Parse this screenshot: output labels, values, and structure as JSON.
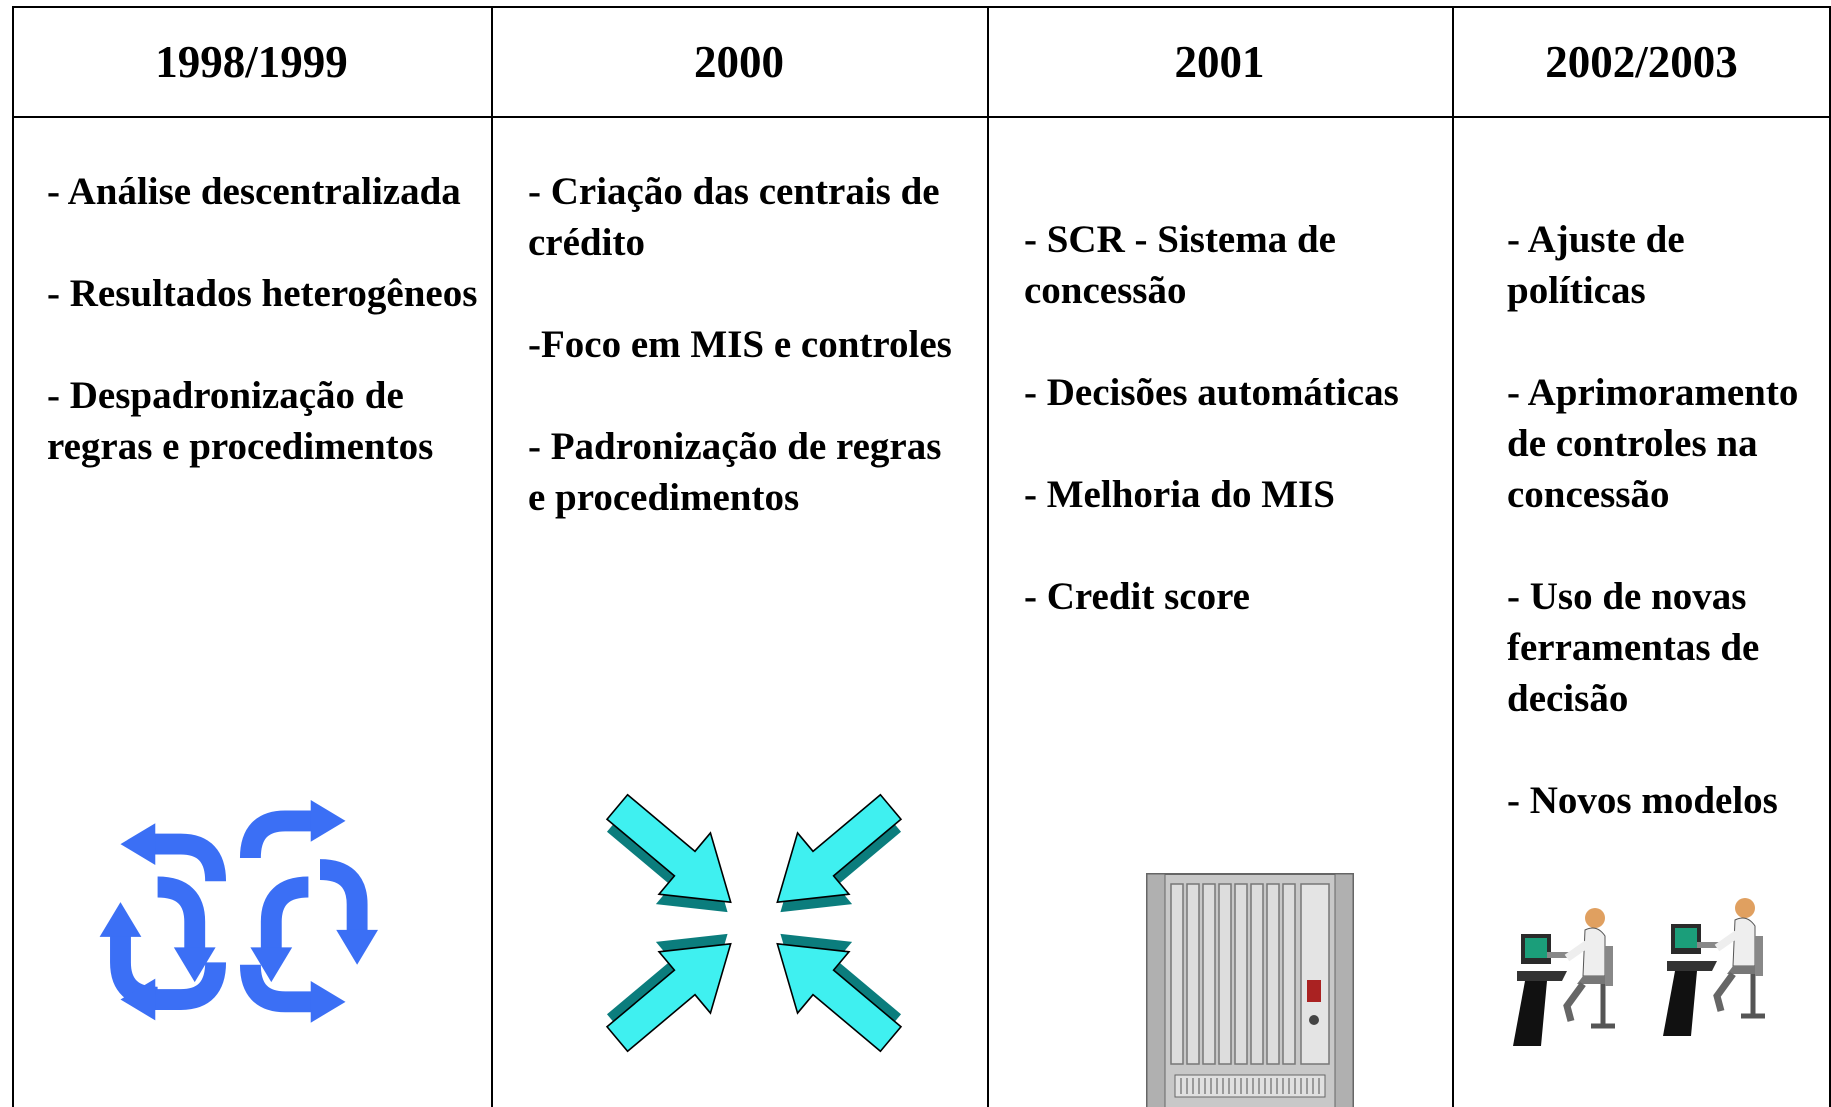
{
  "table": {
    "headers": [
      "1998/1999",
      "2000",
      "2001",
      "2002/2003"
    ],
    "columns": [
      {
        "items": [
          "- Análise descentralizada",
          "- Resultados heterogêneos",
          "- Despadronização de regras e procedimentos"
        ]
      },
      {
        "items": [
          "- Criação das centrais de crédito",
          "-Foco em MIS e controles",
          "- Padronização de regras e procedimentos"
        ]
      },
      {
        "items": [
          "- SCR - Sistema de concessão",
          "- Decisões automáticas",
          "- Melhoria do MIS",
          "-  Credit score"
        ]
      },
      {
        "items": [
          "- Ajuste de políticas",
          "- Aprimoramento de controles na concessão",
          "- Uso de novas ferramentas de decisão",
          "- Novos modelos"
        ]
      }
    ]
  }
}
